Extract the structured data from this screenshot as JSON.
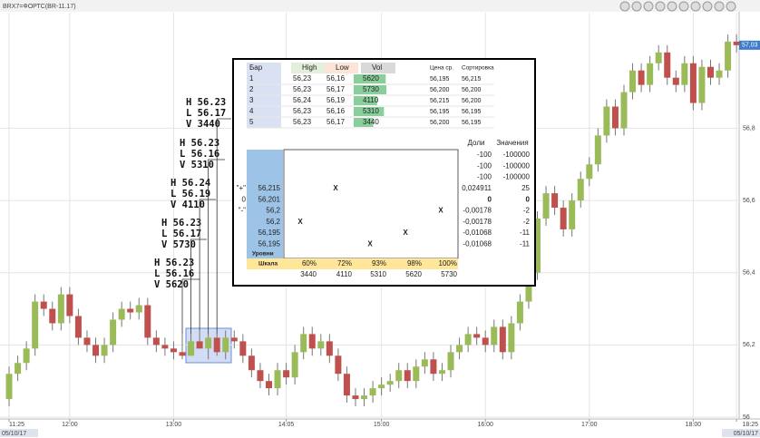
{
  "chart_data": {
    "type": "candlestick",
    "title": "BRX7=ФОРТС(BR-11.17)",
    "up_color": "#9bbb59",
    "down_color": "#c0504d",
    "x": [
      0,
      1,
      2,
      3,
      4,
      5,
      6,
      7,
      8,
      9,
      10,
      11,
      12,
      13,
      14,
      15,
      16,
      17,
      18,
      19,
      20,
      21,
      22,
      23,
      24,
      25,
      26,
      27,
      28,
      29,
      30,
      31,
      32,
      33,
      34,
      35,
      36,
      37,
      38,
      39,
      40,
      41,
      42,
      43,
      44,
      45,
      46,
      47,
      48,
      49,
      50,
      51,
      52,
      53,
      54,
      55,
      56,
      57,
      58,
      59,
      60,
      61,
      62,
      63,
      64,
      65,
      66,
      67,
      68,
      69,
      70,
      71,
      72,
      73,
      74,
      75,
      76,
      77,
      78,
      79,
      80,
      81,
      82,
      83,
      84
    ],
    "open": [
      56.05,
      56.12,
      56.15,
      56.19,
      56.32,
      56.3,
      56.26,
      56.34,
      56.28,
      56.22,
      56.2,
      56.17,
      56.2,
      56.27,
      56.3,
      56.29,
      56.31,
      56.22,
      56.2,
      56.19,
      56.18,
      56.17,
      56.21,
      56.19,
      56.22,
      56.18,
      56.22,
      56.21,
      56.17,
      56.13,
      56.1,
      56.08,
      56.13,
      56.11,
      56.18,
      56.23,
      56.19,
      56.21,
      56.17,
      56.12,
      56.06,
      56.05,
      56.06,
      56.08,
      56.09,
      56.1,
      56.13,
      56.1,
      56.14,
      56.16,
      56.12,
      56.13,
      56.18,
      56.2,
      56.23,
      56.22,
      56.2,
      56.25,
      56.18,
      56.26,
      56.32,
      56.4,
      56.55,
      56.62,
      56.58,
      56.52,
      56.6,
      56.66,
      56.7,
      56.78,
      56.86,
      56.8,
      56.9,
      56.96,
      56.92,
      56.98,
      57.01,
      56.94,
      56.92,
      56.98,
      56.87,
      56.97,
      56.94,
      56.96,
      57.04
    ],
    "high": [
      56.14,
      56.17,
      56.21,
      56.34,
      56.34,
      56.32,
      56.36,
      56.36,
      56.3,
      56.24,
      56.22,
      56.22,
      56.29,
      56.32,
      56.32,
      56.33,
      56.33,
      56.24,
      56.22,
      56.21,
      56.23,
      56.23,
      56.24,
      56.23,
      56.23,
      56.24,
      56.24,
      56.23,
      56.19,
      56.15,
      56.12,
      56.15,
      56.15,
      56.2,
      56.25,
      56.25,
      56.23,
      56.23,
      56.19,
      56.14,
      56.08,
      56.08,
      56.1,
      56.11,
      56.12,
      56.15,
      56.15,
      56.16,
      56.18,
      56.18,
      56.15,
      56.2,
      56.22,
      56.25,
      56.25,
      56.24,
      56.27,
      56.27,
      56.28,
      56.34,
      56.42,
      56.57,
      56.64,
      56.64,
      56.6,
      56.62,
      56.68,
      56.72,
      56.8,
      56.88,
      56.88,
      56.92,
      56.98,
      56.98,
      57.0,
      57.03,
      57.03,
      56.96,
      57.0,
      57.0,
      56.99,
      56.99,
      56.98,
      57.06,
      57.06
    ],
    "low": [
      56.03,
      56.1,
      56.13,
      56.17,
      56.28,
      56.24,
      56.24,
      56.26,
      56.2,
      56.18,
      56.15,
      56.15,
      56.18,
      56.25,
      56.27,
      56.27,
      56.2,
      56.18,
      56.17,
      56.16,
      56.16,
      56.17,
      56.19,
      56.16,
      56.17,
      56.16,
      56.19,
      56.15,
      56.11,
      56.08,
      56.06,
      56.06,
      56.09,
      56.09,
      56.16,
      56.17,
      56.17,
      56.15,
      56.1,
      56.04,
      56.03,
      56.03,
      56.04,
      56.06,
      56.07,
      56.08,
      56.08,
      56.08,
      56.12,
      56.1,
      56.1,
      56.11,
      56.16,
      56.18,
      56.2,
      56.18,
      56.18,
      56.16,
      56.16,
      56.24,
      56.3,
      56.38,
      56.53,
      56.56,
      56.5,
      56.5,
      56.58,
      56.64,
      56.68,
      56.76,
      56.78,
      56.78,
      56.88,
      56.9,
      56.9,
      56.96,
      56.92,
      56.9,
      56.9,
      56.85,
      56.85,
      56.92,
      56.92,
      56.94,
      57.01
    ],
    "close": [
      56.12,
      56.15,
      56.19,
      56.32,
      56.3,
      56.26,
      56.34,
      56.28,
      56.22,
      56.2,
      56.17,
      56.2,
      56.27,
      56.3,
      56.29,
      56.31,
      56.22,
      56.2,
      56.19,
      56.18,
      56.17,
      56.21,
      56.19,
      56.22,
      56.18,
      56.22,
      56.21,
      56.17,
      56.13,
      56.1,
      56.08,
      56.13,
      56.11,
      56.18,
      56.23,
      56.19,
      56.21,
      56.17,
      56.12,
      56.06,
      56.05,
      56.06,
      56.08,
      56.09,
      56.1,
      56.13,
      56.1,
      56.14,
      56.16,
      56.12,
      56.13,
      56.18,
      56.2,
      56.23,
      56.22,
      56.2,
      56.25,
      56.18,
      56.26,
      56.32,
      56.4,
      56.55,
      56.62,
      56.58,
      56.52,
      56.6,
      56.66,
      56.7,
      56.78,
      56.86,
      56.8,
      56.9,
      56.96,
      56.92,
      56.98,
      57.01,
      56.94,
      56.92,
      56.98,
      56.87,
      56.97,
      56.94,
      56.96,
      57.04,
      57.03
    ],
    "xlim": [
      -1.05,
      84.3
    ],
    "xticks": [
      {
        "value": 0,
        "label": "11:25"
      },
      {
        "value": 7,
        "label": "12:00"
      },
      {
        "value": 19,
        "label": "13:00"
      },
      {
        "value": 32,
        "label": "14:05"
      },
      {
        "value": 43,
        "label": "15:00"
      },
      {
        "value": 55,
        "label": "16:00"
      },
      {
        "value": 67,
        "label": "17:00"
      },
      {
        "value": 79,
        "label": "18:00"
      },
      {
        "value": 84,
        "label": "18:25"
      }
    ],
    "dates": [
      {
        "value": 0,
        "label": "05/10/17"
      },
      {
        "value": 84,
        "label": "05/10/17"
      }
    ],
    "ylim": [
      56.0,
      57.12
    ],
    "yticks": [
      56,
      {
        "value": 56.2,
        "label": "56,2"
      },
      {
        "value": 56.4,
        "label": "56,4"
      },
      {
        "value": 56.6,
        "label": "56,6"
      },
      {
        "value": 56.8,
        "label": "56,8"
      }
    ],
    "last_price": {
      "value": 57.03,
      "label": "57,03"
    },
    "grid": true,
    "annotations": [
      {
        "bar": 20,
        "lines": [
          "H 56.23",
          "L 56.16",
          "V 5620"
        ]
      },
      {
        "bar": 21,
        "lines": [
          "H 56.23",
          "L 56.17",
          "V 5730"
        ]
      },
      {
        "bar": 22,
        "lines": [
          "H 56.24",
          "L 56.19",
          "V 4110"
        ]
      },
      {
        "bar": 23,
        "lines": [
          "H 56.23",
          "L 56.16",
          "V 5310"
        ]
      },
      {
        "bar": 24,
        "lines": [
          "H 56.23",
          "L 56.17",
          "V 3440"
        ]
      }
    ]
  },
  "table": {
    "header": [
      "Бар",
      "High",
      "Low",
      "Vol",
      "Цена ср.",
      "Сортировка"
    ],
    "rows": [
      [
        "1",
        "56,23",
        "56,16",
        5620,
        "56,195",
        "56,215"
      ],
      [
        "2",
        "56,23",
        "56,17",
        5730,
        "56,200",
        "56,200"
      ],
      [
        "3",
        "56,24",
        "56,19",
        4110,
        "56,215",
        "56,200"
      ],
      [
        "4",
        "56,23",
        "56,16",
        5310,
        "56,195",
        "56,195"
      ],
      [
        "5",
        "56,23",
        "56,17",
        3440,
        "56,200",
        "56,195"
      ]
    ],
    "lower_header": [
      "Доли",
      "Значения"
    ],
    "lower_rows": [
      {
        "share": "-100",
        "value": "-100000"
      },
      {
        "share": "-100",
        "value": "-100000"
      },
      {
        "share": "-100",
        "value": "-100000"
      },
      {
        "sign": "\"+\"",
        "level": "56,215",
        "marks": {
          "1": "X"
        },
        "share": "0,024911",
        "value": "25"
      },
      {
        "sign": "0",
        "level": "56,201",
        "share": "0",
        "value": "0"
      },
      {
        "sign": "\"-\"",
        "level": "56,2",
        "marks": {
          "4": "X"
        },
        "share": "-0,00178",
        "value": "-2"
      },
      {
        "level": "56,2",
        "marks": {
          "0": "X"
        },
        "share": "-0,00178",
        "value": "-2"
      },
      {
        "level": "56,195",
        "marks": {
          "3": "X"
        },
        "share": "-0,01068",
        "value": "-11"
      },
      {
        "level": "56,195",
        "marks": {
          "2": "X"
        },
        "share": "-0,01068",
        "value": "-11"
      }
    ],
    "levels_label": "Уровни",
    "scale_label": "Шкала",
    "scale": [
      "60%",
      "72%",
      "93%",
      "98%",
      "100%"
    ],
    "scale_volumes": [
      3440,
      4110,
      5310,
      5620,
      5730
    ]
  }
}
